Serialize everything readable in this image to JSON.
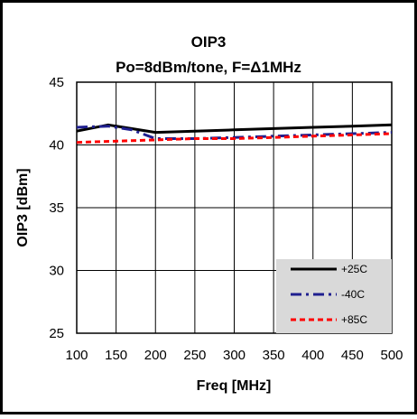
{
  "chart_data": {
    "type": "line",
    "title": "OIP3",
    "subtitle": "Po=8dBm/tone,  F=Δ1MHz",
    "xlabel": "Freq [MHz]",
    "ylabel": "OIP3 [dBm]",
    "xlim": [
      100,
      500
    ],
    "ylim": [
      25,
      45
    ],
    "xticks": [
      100,
      150,
      200,
      250,
      300,
      350,
      400,
      450,
      500
    ],
    "yticks": [
      25,
      30,
      35,
      40,
      45
    ],
    "grid": true,
    "legend_position": "bottom-right",
    "series": [
      {
        "name": "+25C",
        "color": "#000000",
        "dash": "solid",
        "x": [
          100,
          140,
          200,
          250,
          300,
          350,
          400,
          450,
          500
        ],
        "y": [
          41.1,
          41.6,
          41.0,
          41.1,
          41.2,
          41.3,
          41.4,
          41.5,
          41.6
        ]
      },
      {
        "name": "-40C",
        "color": "#1f1f8f",
        "dash": "dashdot",
        "x": [
          100,
          140,
          170,
          200,
          250,
          300,
          350,
          400,
          450,
          500
        ],
        "y": [
          41.4,
          41.5,
          41.2,
          40.5,
          40.5,
          40.6,
          40.7,
          40.8,
          40.9,
          41.0
        ]
      },
      {
        "name": "+85C",
        "color": "#ff0000",
        "dash": "dashed",
        "x": [
          100,
          150,
          200,
          250,
          300,
          350,
          400,
          450,
          500
        ],
        "y": [
          40.2,
          40.3,
          40.4,
          40.5,
          40.5,
          40.6,
          40.7,
          40.8,
          40.9
        ]
      }
    ]
  }
}
